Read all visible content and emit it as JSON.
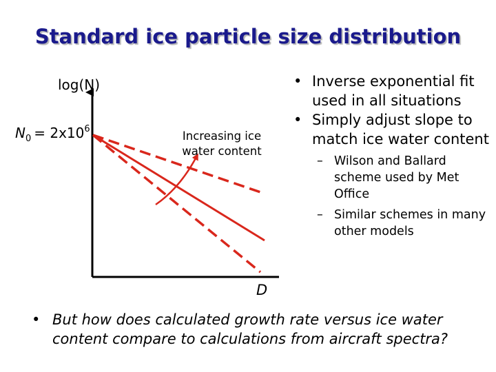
{
  "title": "Standard ice particle size distribution",
  "diagram": {
    "y_axis_label": "log(N)",
    "x_axis_label": "D",
    "n0_prefix": "N",
    "n0_subscript": "0",
    "n0_value": "= 2x10",
    "n0_exponent": "6",
    "annotation_line1": "Increasing ice",
    "annotation_line2": "water content",
    "line_color": "#d9271c"
  },
  "bullets": [
    "Inverse exponential fit used in all situations",
    "Simply adjust slope to match ice water content"
  ],
  "sub_bullets": [
    "Wilson and Ballard scheme used by Met Office",
    "Similar schemes in many other models"
  ],
  "bottom_bullet": "But how does calculated growth rate versus ice water content compare to calculations from aircraft spectra?"
}
